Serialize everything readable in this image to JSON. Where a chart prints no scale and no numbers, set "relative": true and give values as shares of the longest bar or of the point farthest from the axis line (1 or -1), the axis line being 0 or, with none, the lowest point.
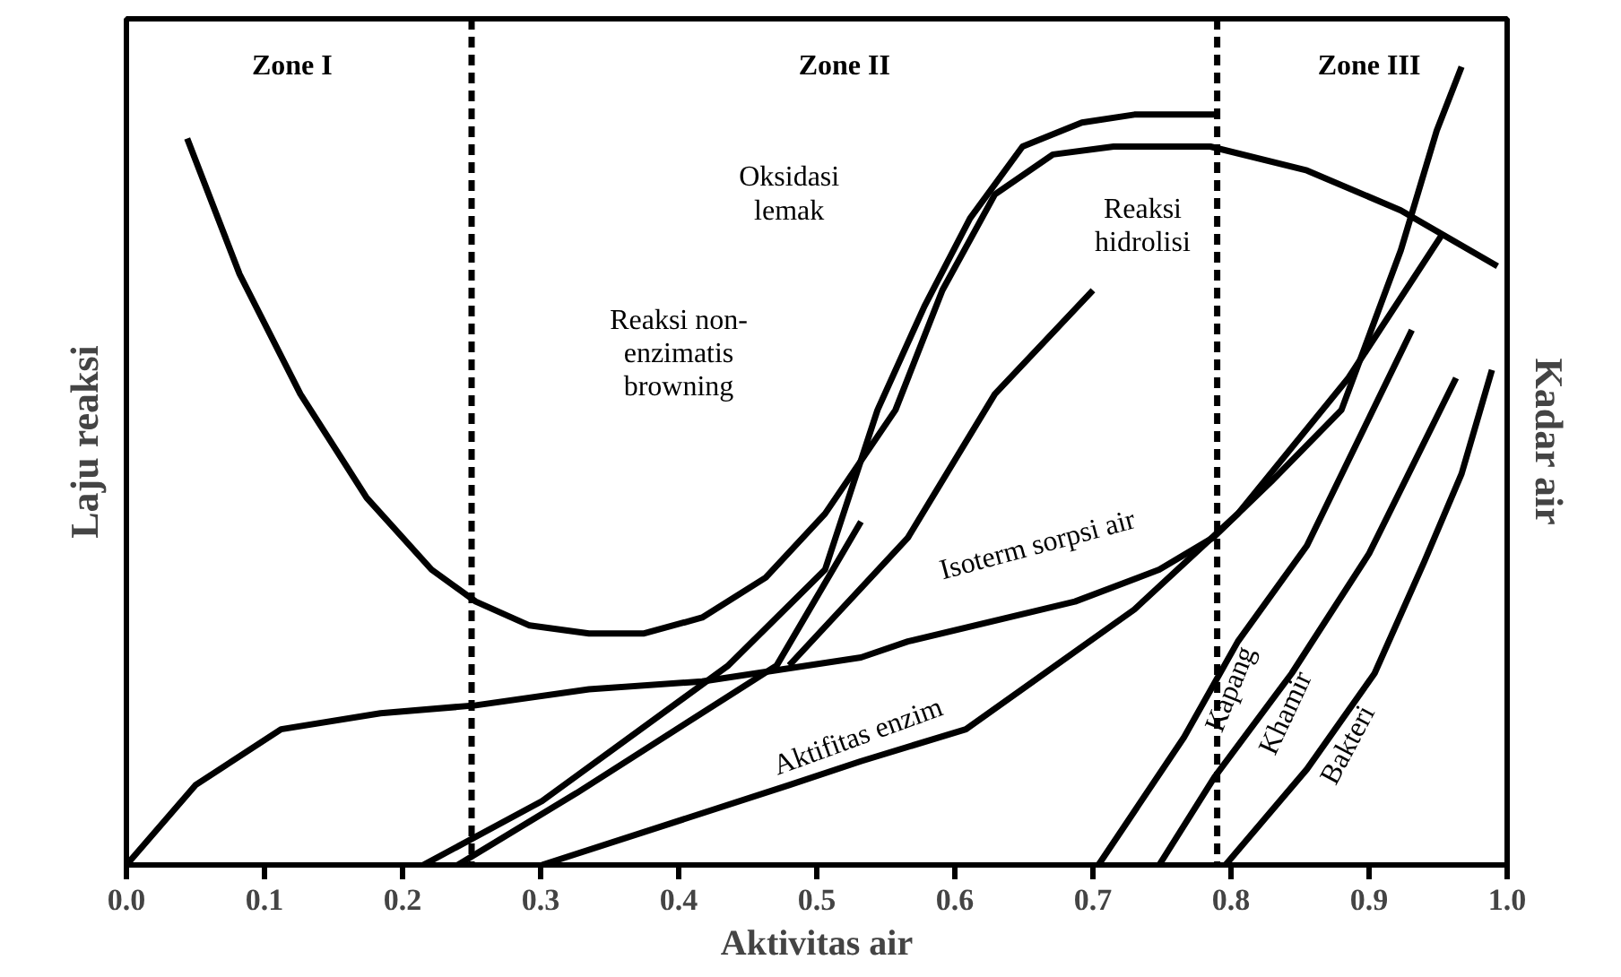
{
  "chart_data": {
    "type": "line",
    "relative": true,
    "xlabel": "Aktivitas air",
    "ylabel": "Laju reaksi",
    "y2label": "Kadar air",
    "xlim": [
      0,
      1
    ],
    "xticks": [
      {
        "value": 0,
        "label": "0.0"
      },
      {
        "value": 0.1,
        "label": "0.1"
      },
      {
        "value": 0.2,
        "label": "0.2"
      },
      {
        "value": 0.3,
        "label": "0.3"
      },
      {
        "value": 0.4,
        "label": "0.4"
      },
      {
        "value": 0.5,
        "label": "0.5"
      },
      {
        "value": 0.6,
        "label": "0.6"
      },
      {
        "value": 0.7,
        "label": "0.7"
      },
      {
        "value": 0.8,
        "label": "0.8"
      },
      {
        "value": 0.9,
        "label": "0.9"
      },
      {
        "value": 1,
        "label": "1.0"
      }
    ],
    "grid": false,
    "line_style": "solid",
    "marker": "none",
    "tick_labels": "x",
    "series": [
      {
        "color": "#000000",
        "x": [
          0.044,
          0.082,
          0.126,
          0.174,
          0.221,
          0.253,
          0.292,
          0.335,
          0.375,
          0.417,
          0.463,
          0.506,
          0.557,
          0.591,
          0.629,
          0.671,
          0.715,
          0.785,
          0.855,
          0.923,
          0.993
        ],
        "values": [
          0.91,
          0.74,
          0.59,
          0.46,
          0.37,
          0.33,
          0.3,
          0.29,
          0.29,
          0.31,
          0.36,
          0.44,
          0.57,
          0.72,
          0.84,
          0.89,
          0.9,
          0.9,
          0.87,
          0.82,
          0.75
        ]
      },
      {
        "color": "#000000",
        "x": [
          0.215,
          0.301,
          0.436,
          0.506,
          0.544,
          0.578,
          0.611,
          0.649,
          0.692,
          0.73,
          0.792
        ],
        "values": [
          0,
          0.08,
          0.25,
          0.37,
          0.57,
          0.7,
          0.81,
          0.9,
          0.93,
          0.94,
          0.94
        ]
      },
      {
        "color": "#000000",
        "x": [
          0.24,
          0.326,
          0.471,
          0.532
        ],
        "values": [
          0,
          0.09,
          0.25,
          0.43
        ]
      },
      {
        "color": "#000000",
        "x": [
          0.48,
          0.566,
          0.629,
          0.7
        ],
        "values": [
          0.25,
          0.41,
          0.59,
          0.72
        ]
      },
      {
        "color": "#000000",
        "x": [
          0.301,
          0.48,
          0.532,
          0.608,
          0.73,
          0.805,
          0.885,
          0.953
        ],
        "values": [
          0,
          0.1,
          0.13,
          0.17,
          0.32,
          0.44,
          0.61,
          0.79
        ]
      },
      {
        "color": "#000000",
        "x": [
          0.0,
          0.05,
          0.112,
          0.184,
          0.253,
          0.335,
          0.417,
          0.532,
          0.566,
          0.687,
          0.748,
          0.787,
          0.829,
          0.88,
          0.923,
          0.949,
          0.967
        ],
        "values": [
          0,
          0.1,
          0.17,
          0.19,
          0.2,
          0.22,
          0.23,
          0.26,
          0.28,
          0.33,
          0.37,
          0.41,
          0.48,
          0.57,
          0.77,
          0.92,
          1.0
        ]
      },
      {
        "color": "#000000",
        "x": [
          0.704,
          0.766,
          0.805,
          0.855,
          0.931
        ],
        "values": [
          0,
          0.16,
          0.28,
          0.4,
          0.67
        ]
      },
      {
        "color": "#000000",
        "x": [
          0.748,
          0.788,
          0.844,
          0.9,
          0.963
        ],
        "values": [
          0,
          0.11,
          0.24,
          0.39,
          0.61
        ]
      },
      {
        "color": "#000000",
        "x": [
          0.796,
          0.855,
          0.904,
          0.94,
          0.967,
          0.989
        ],
        "values": [
          0,
          0.12,
          0.24,
          0.38,
          0.49,
          0.62
        ]
      }
    ],
    "ref_lines": [
      {
        "axis": "x",
        "value": 0.25,
        "color": "#000000",
        "line_style": "dashed"
      },
      {
        "axis": "x",
        "value": 0.79,
        "color": "#000000",
        "line_style": "dashed"
      }
    ],
    "annotations": [
      "Zone I",
      "Zone II",
      "Zone III",
      "Oksidasi\nlemak",
      "Reaksi non-\nenzimatis\nbrowning",
      "Reaksi\nhidrolisi",
      "Isoterm sorpsi air",
      "Aktifitas enzim",
      "Kapang",
      "Khamir",
      "Bakteri"
    ]
  }
}
